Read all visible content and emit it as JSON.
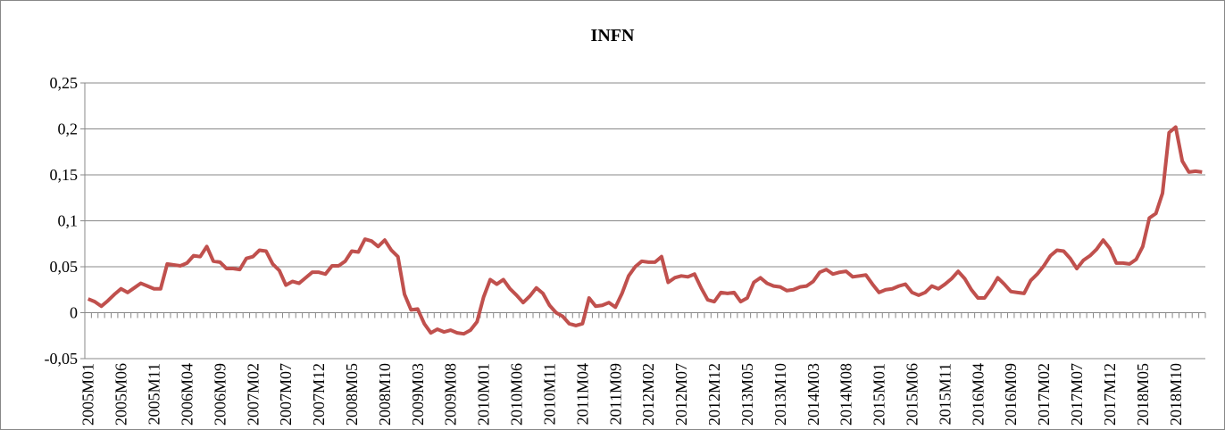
{
  "chart_data": {
    "type": "line",
    "title": "INFN",
    "categories": [
      "2005M01",
      null,
      null,
      null,
      null,
      "2005M06",
      null,
      null,
      null,
      null,
      "2005M11",
      null,
      null,
      null,
      null,
      "2006M04",
      null,
      null,
      null,
      null,
      "2006M09",
      null,
      null,
      null,
      null,
      "2007M02",
      null,
      null,
      null,
      null,
      "2007M07",
      null,
      null,
      null,
      null,
      "2007M12",
      null,
      null,
      null,
      null,
      "2008M05",
      null,
      null,
      null,
      null,
      "2008M10",
      null,
      null,
      null,
      null,
      "2009M03",
      null,
      null,
      null,
      null,
      "2009M08",
      null,
      null,
      null,
      null,
      "2010M01",
      null,
      null,
      null,
      null,
      "2010M06",
      null,
      null,
      null,
      null,
      "2010M11",
      null,
      null,
      null,
      null,
      "2011M04",
      null,
      null,
      null,
      null,
      "2011M09",
      null,
      null,
      null,
      null,
      "2012M02",
      null,
      null,
      null,
      null,
      "2012M07",
      null,
      null,
      null,
      null,
      "2012M12",
      null,
      null,
      null,
      null,
      "2013M05",
      null,
      null,
      null,
      null,
      "2013M10",
      null,
      null,
      null,
      null,
      "2014M03",
      null,
      null,
      null,
      null,
      "2014M08",
      null,
      null,
      null,
      null,
      "2015M01",
      null,
      null,
      null,
      null,
      "2015M06",
      null,
      null,
      null,
      null,
      "2015M11",
      null,
      null,
      null,
      null,
      "2016M04",
      null,
      null,
      null,
      null,
      "2016M09",
      null,
      null,
      null,
      null,
      "2017M02",
      null,
      null,
      null,
      null,
      "2017M07",
      null,
      null,
      null,
      null,
      "2017M12",
      null,
      null,
      null,
      null,
      "2018M05",
      null,
      null,
      null,
      null,
      "2018M10",
      null,
      null,
      null,
      null
    ],
    "values": [
      0.015,
      0.012,
      0.007,
      0.013,
      0.02,
      0.026,
      0.022,
      0.027,
      0.032,
      0.029,
      0.026,
      0.026,
      0.053,
      0.052,
      0.051,
      0.054,
      0.062,
      0.061,
      0.072,
      0.056,
      0.055,
      0.048,
      0.048,
      0.047,
      0.059,
      0.061,
      0.068,
      0.067,
      0.053,
      0.046,
      0.03,
      0.034,
      0.032,
      0.038,
      0.044,
      0.044,
      0.042,
      0.051,
      0.051,
      0.056,
      0.067,
      0.066,
      0.08,
      0.078,
      0.072,
      0.079,
      0.068,
      0.061,
      0.02,
      0.003,
      0.004,
      -0.012,
      -0.022,
      -0.018,
      -0.021,
      -0.019,
      -0.022,
      -0.023,
      -0.019,
      -0.01,
      0.017,
      0.036,
      0.031,
      0.036,
      0.026,
      0.019,
      0.011,
      0.018,
      0.027,
      0.021,
      0.008,
      0.0,
      -0.004,
      -0.012,
      -0.014,
      -0.012,
      0.016,
      0.007,
      0.008,
      0.011,
      0.006,
      0.021,
      0.04,
      0.05,
      0.056,
      0.055,
      0.055,
      0.061,
      0.033,
      0.038,
      0.04,
      0.039,
      0.042,
      0.027,
      0.014,
      0.012,
      0.022,
      0.021,
      0.022,
      0.012,
      0.016,
      0.033,
      0.038,
      0.032,
      0.029,
      0.028,
      0.024,
      0.025,
      0.028,
      0.029,
      0.034,
      0.044,
      0.047,
      0.042,
      0.044,
      0.045,
      0.039,
      0.04,
      0.041,
      0.031,
      0.022,
      0.025,
      0.026,
      0.029,
      0.031,
      0.022,
      0.019,
      0.022,
      0.029,
      0.026,
      0.031,
      0.037,
      0.045,
      0.037,
      0.025,
      0.016,
      0.016,
      0.026,
      0.038,
      0.031,
      0.023,
      0.022,
      0.021,
      0.035,
      0.042,
      0.051,
      0.062,
      0.068,
      0.067,
      0.059,
      0.048,
      0.057,
      0.062,
      0.069,
      0.079,
      0.07,
      0.054,
      0.054,
      0.053,
      0.058,
      0.072,
      0.103,
      0.108,
      0.13,
      0.196,
      0.202,
      0.165,
      0.153,
      0.154,
      0.153
    ],
    "color": "#c0504d",
    "ylim": [
      -0.05,
      0.25
    ],
    "yticks": [
      {
        "value": -0.05,
        "label": "-0,05"
      },
      0,
      {
        "value": 0.05,
        "label": "0,05"
      },
      {
        "value": 0.1,
        "label": "0,1"
      },
      {
        "value": 0.15,
        "label": "0,15"
      },
      {
        "value": 0.2,
        "label": "0,2"
      },
      {
        "value": 0.25,
        "label": "0,25"
      }
    ],
    "grid": true
  }
}
